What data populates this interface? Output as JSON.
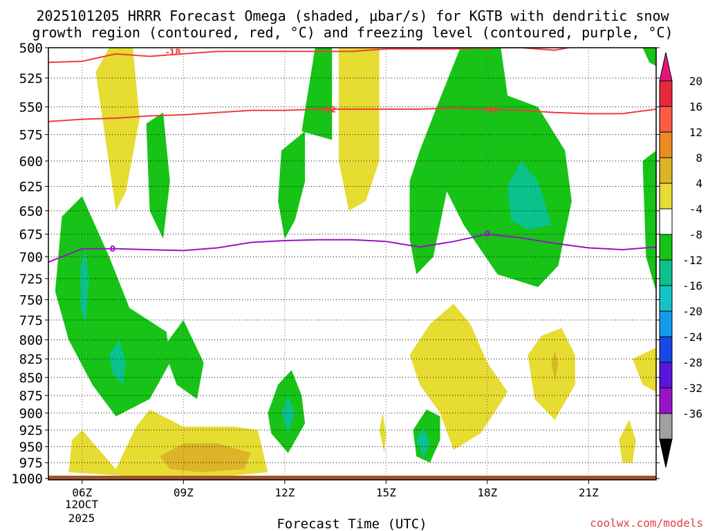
{
  "chart_data": {
    "type": "time-height contour",
    "title_line1": "2025101205 HRRR Forecast Omega (shaded, μbar/s) for KGTB with dendritic snow",
    "title_line2": "growth region (contoured, red, °C) and freezing level (contoured, purple, °C)",
    "xlabel": "Forecast Time (UTC)",
    "x_ticks": [
      "06Z",
      "09Z",
      "12Z",
      "15Z",
      "18Z",
      "21Z"
    ],
    "x_tick_hours": [
      6,
      9,
      12,
      15,
      18,
      21
    ],
    "x_range_hours": [
      5.0,
      23.0
    ],
    "date_line1": "12OCT",
    "date_line2": "2025",
    "y_ticks": [
      500,
      525,
      550,
      575,
      600,
      625,
      650,
      675,
      700,
      725,
      750,
      775,
      800,
      825,
      850,
      875,
      900,
      925,
      950,
      975,
      1000
    ],
    "y_range_hPa": [
      500,
      1000
    ],
    "y_scale": "log-pressure",
    "colorbar_levels": [
      20,
      16,
      12,
      8,
      4,
      -4,
      -8,
      -12,
      -16,
      -20,
      -24,
      -28,
      -32,
      -36
    ],
    "colorbar_colors": [
      "#e8283c",
      "#ff5a46",
      "#ec8c23",
      "#dcb428",
      "#e6dc32",
      "#ffffff",
      "#16c316",
      "#0bc18c",
      "#14c3c8",
      "#149bec",
      "#1648e6",
      "#5a14dc",
      "#9614c8",
      "#a0a0a0"
    ],
    "colorbar_top_color": "#e8147d",
    "colorbar_bottom_color": "#000000",
    "contours": [
      {
        "name": "dgz-18",
        "label": "-18",
        "color": "#f03c3c",
        "points": [
          [
            5,
            512
          ],
          [
            6,
            511
          ],
          [
            7,
            505
          ],
          [
            8,
            507
          ],
          [
            9,
            505
          ],
          [
            10,
            503
          ],
          [
            11,
            503
          ],
          [
            12,
            503
          ],
          [
            13,
            503
          ],
          [
            14,
            503
          ],
          [
            15,
            501
          ],
          [
            16,
            501
          ],
          [
            17,
            501
          ],
          [
            18,
            500
          ],
          [
            19,
            500
          ],
          [
            20,
            502
          ],
          [
            21,
            497
          ]
        ],
        "label_at": [
          [
            8.7,
            503.5
          ],
          [
            17.9,
            499.5
          ]
        ]
      },
      {
        "name": "dgz-12",
        "label": "-12",
        "color": "#f03c3c",
        "points": [
          [
            5,
            563
          ],
          [
            6,
            561
          ],
          [
            7,
            560
          ],
          [
            8,
            558
          ],
          [
            9,
            557
          ],
          [
            10,
            555
          ],
          [
            11,
            553
          ],
          [
            12,
            553
          ],
          [
            13,
            552
          ],
          [
            14,
            552
          ],
          [
            15,
            552
          ],
          [
            16,
            552
          ],
          [
            17,
            551
          ],
          [
            18,
            552
          ],
          [
            19,
            553
          ],
          [
            20,
            555
          ],
          [
            21,
            556
          ],
          [
            22,
            556
          ],
          [
            23,
            552
          ]
        ],
        "label_at": [
          [
            13.3,
            552.5
          ],
          [
            18.1,
            552.5
          ]
        ]
      },
      {
        "name": "freezing-level",
        "label": "0",
        "color": "#9614c8",
        "points": [
          [
            5,
            706
          ],
          [
            6,
            691
          ],
          [
            7,
            691
          ],
          [
            8,
            692
          ],
          [
            9,
            693
          ],
          [
            10,
            690
          ],
          [
            11,
            684
          ],
          [
            12,
            682
          ],
          [
            13,
            681
          ],
          [
            14,
            681
          ],
          [
            15,
            683
          ],
          [
            16,
            689
          ],
          [
            17,
            683
          ],
          [
            18,
            675
          ],
          [
            19,
            679
          ],
          [
            20,
            685
          ],
          [
            21,
            690
          ],
          [
            22,
            692
          ],
          [
            23,
            689
          ]
        ],
        "label_at": [
          [
            6.9,
            691
          ],
          [
            18.0,
            675
          ]
        ]
      }
    ],
    "omega_regions": [
      {
        "level": "-4 to -8",
        "color": "#16c316",
        "polygon": [
          [
            5.4,
            656
          ],
          [
            6,
            635
          ],
          [
            6.8,
            700
          ],
          [
            7.4,
            760
          ],
          [
            8.5,
            790
          ],
          [
            8.6,
            830
          ],
          [
            8.0,
            880
          ],
          [
            7.0,
            905
          ],
          [
            6.3,
            860
          ],
          [
            5.6,
            800
          ],
          [
            5.2,
            740
          ]
        ]
      },
      {
        "level": "-8 to -12",
        "color": "#0bc18c",
        "polygon": [
          [
            5.95,
            710
          ],
          [
            6.1,
            690
          ],
          [
            6.2,
            730
          ],
          [
            6.1,
            780
          ],
          [
            5.95,
            760
          ]
        ]
      },
      {
        "level": "-8 to -12",
        "color": "#0bc18c",
        "polygon": [
          [
            6.8,
            820
          ],
          [
            7.1,
            800
          ],
          [
            7.3,
            830
          ],
          [
            7.2,
            860
          ],
          [
            6.9,
            845
          ]
        ]
      },
      {
        "level": "-4 to -8",
        "color": "#16c316",
        "polygon": [
          [
            7.9,
            565
          ],
          [
            8.4,
            555
          ],
          [
            8.6,
            620
          ],
          [
            8.4,
            680
          ],
          [
            8.0,
            650
          ]
        ]
      },
      {
        "level": "-4 to -8",
        "color": "#16c316",
        "polygon": [
          [
            8.4,
            810
          ],
          [
            9.0,
            775
          ],
          [
            9.6,
            830
          ],
          [
            9.4,
            880
          ],
          [
            8.8,
            860
          ]
        ]
      },
      {
        "level": "-4 to -8",
        "color": "#16c316",
        "polygon": [
          [
            11.9,
            590
          ],
          [
            12.6,
            572
          ],
          [
            12.6,
            620
          ],
          [
            12.3,
            660
          ],
          [
            12.0,
            680
          ],
          [
            11.8,
            640
          ]
        ]
      },
      {
        "level": "-4 to -8",
        "color": "#16c316",
        "polygon": [
          [
            12.5,
            572
          ],
          [
            12.9,
            500
          ],
          [
            13.4,
            500
          ],
          [
            13.4,
            580
          ]
        ]
      },
      {
        "level": "-4 to -8",
        "color": "#16c316",
        "polygon": [
          [
            11.5,
            900
          ],
          [
            11.8,
            860
          ],
          [
            12.2,
            840
          ],
          [
            12.5,
            875
          ],
          [
            12.6,
            915
          ],
          [
            12.1,
            960
          ],
          [
            11.6,
            930
          ]
        ]
      },
      {
        "level": "-8 to -12",
        "color": "#0bc18c",
        "polygon": [
          [
            11.9,
            900
          ],
          [
            12.1,
            875
          ],
          [
            12.3,
            900
          ],
          [
            12.1,
            930
          ]
        ]
      },
      {
        "level": "-4 to -8",
        "color": "#16c316",
        "polygon": [
          [
            15.8,
            925
          ],
          [
            16.2,
            895
          ],
          [
            16.6,
            905
          ],
          [
            16.6,
            940
          ],
          [
            16.3,
            975
          ],
          [
            15.9,
            965
          ]
        ]
      },
      {
        "level": "-8 to -12",
        "color": "#0bc18c",
        "polygon": [
          [
            15.9,
            940
          ],
          [
            16.1,
            920
          ],
          [
            16.3,
            945
          ],
          [
            16.1,
            968
          ]
        ]
      },
      {
        "level": "-4 to -8",
        "color": "#16c316",
        "polygon": [
          [
            15.7,
            620
          ],
          [
            16.0,
            590
          ],
          [
            16.5,
            550
          ],
          [
            17.2,
            500
          ],
          [
            18.4,
            500
          ],
          [
            18.6,
            540
          ],
          [
            19.5,
            550
          ],
          [
            20.3,
            590
          ],
          [
            20.5,
            640
          ],
          [
            20.1,
            710
          ],
          [
            19.5,
            735
          ],
          [
            18.3,
            720
          ],
          [
            17.3,
            665
          ],
          [
            16.8,
            630
          ],
          [
            16.4,
            700
          ],
          [
            15.9,
            720
          ],
          [
            15.7,
            680
          ]
        ]
      },
      {
        "level": "-8 to -12",
        "color": "#0bc18c",
        "polygon": [
          [
            18.6,
            625
          ],
          [
            19.0,
            600
          ],
          [
            19.5,
            620
          ],
          [
            19.9,
            665
          ],
          [
            19.2,
            670
          ],
          [
            18.7,
            660
          ]
        ]
      },
      {
        "level": "-4 to -8",
        "color": "#16c316",
        "polygon": [
          [
            22.6,
            600
          ],
          [
            23.0,
            590
          ],
          [
            23.0,
            740
          ],
          [
            22.7,
            700
          ]
        ]
      },
      {
        "level": "-4 to -8",
        "color": "#16c316",
        "polygon": [
          [
            22.6,
            500
          ],
          [
            23.0,
            500
          ],
          [
            23.0,
            515
          ],
          [
            22.8,
            512
          ]
        ]
      },
      {
        "level": "4 to 8",
        "color": "#e6dc32",
        "polygon": [
          [
            6.8,
            500
          ],
          [
            7.5,
            500
          ],
          [
            7.7,
            560
          ],
          [
            7.3,
            630
          ],
          [
            7.0,
            650
          ],
          [
            6.6,
            560
          ],
          [
            6.4,
            520
          ]
        ]
      },
      {
        "level": "4 to 8",
        "color": "#e6dc32",
        "polygon": [
          [
            13.6,
            500
          ],
          [
            14.8,
            500
          ],
          [
            14.8,
            600
          ],
          [
            14.4,
            640
          ],
          [
            13.9,
            650
          ],
          [
            13.6,
            600
          ]
        ]
      },
      {
        "level": "4 to 8",
        "color": "#e6dc32",
        "polygon": [
          [
            15.7,
            820
          ],
          [
            16.3,
            780
          ],
          [
            17.0,
            755
          ],
          [
            17.5,
            780
          ],
          [
            18.0,
            830
          ],
          [
            18.6,
            870
          ],
          [
            18.2,
            900
          ],
          [
            17.8,
            930
          ],
          [
            17.0,
            955
          ],
          [
            16.6,
            900
          ],
          [
            16.0,
            860
          ]
        ]
      },
      {
        "level": "4 to 8",
        "color": "#e6dc32",
        "polygon": [
          [
            19.2,
            820
          ],
          [
            19.6,
            795
          ],
          [
            20.2,
            785
          ],
          [
            20.6,
            820
          ],
          [
            20.6,
            860
          ],
          [
            20.0,
            910
          ],
          [
            19.4,
            880
          ]
        ]
      },
      {
        "level": "8 to 12",
        "color": "#dcb428",
        "polygon": [
          [
            19.9,
            830
          ],
          [
            20.0,
            815
          ],
          [
            20.1,
            830
          ],
          [
            20.0,
            855
          ]
        ]
      },
      {
        "level": "4 to 8",
        "color": "#e6dc32",
        "polygon": [
          [
            22.3,
            825
          ],
          [
            23.0,
            810
          ],
          [
            23.0,
            870
          ],
          [
            22.6,
            860
          ]
        ]
      },
      {
        "level": "4 to 8",
        "color": "#e6dc32",
        "polygon": [
          [
            21.9,
            940
          ],
          [
            22.2,
            910
          ],
          [
            22.4,
            940
          ],
          [
            22.3,
            975
          ],
          [
            22.0,
            975
          ]
        ]
      },
      {
        "level": "4 to 8",
        "color": "#e6dc32",
        "polygon": [
          [
            14.8,
            925
          ],
          [
            14.9,
            900
          ],
          [
            15.0,
            930
          ],
          [
            14.95,
            960
          ]
        ]
      },
      {
        "level": "4 to 8",
        "color": "#e6dc32",
        "polygon": [
          [
            5.6,
            990
          ],
          [
            5.7,
            940
          ],
          [
            6.0,
            925
          ],
          [
            6.5,
            955
          ],
          [
            7.0,
            985
          ],
          [
            7.6,
            920
          ],
          [
            8.0,
            895
          ],
          [
            9.0,
            920
          ],
          [
            10.5,
            920
          ],
          [
            11.2,
            925
          ],
          [
            11.5,
            990
          ],
          [
            9.5,
            1000
          ],
          [
            7.0,
            995
          ]
        ]
      },
      {
        "level": "8 to 12",
        "color": "#dcb428",
        "polygon": [
          [
            8.3,
            965
          ],
          [
            9.0,
            945
          ],
          [
            10.0,
            945
          ],
          [
            11.0,
            960
          ],
          [
            10.8,
            985
          ],
          [
            9.5,
            990
          ],
          [
            8.6,
            985
          ]
        ]
      }
    ],
    "ground_color": "#a0522d"
  },
  "watermark": "coolwx.com/models"
}
